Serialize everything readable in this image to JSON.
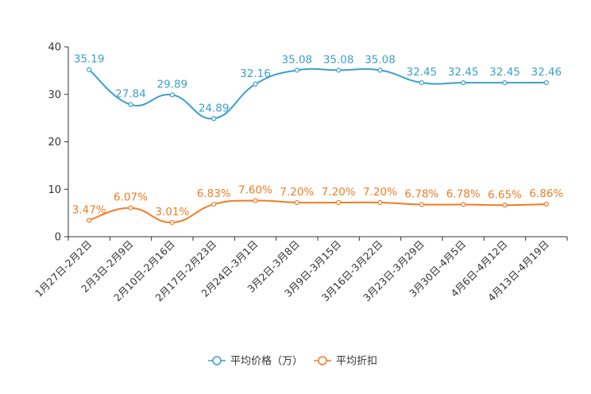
{
  "chart_data": {
    "type": "line",
    "title": "",
    "xlabel": "",
    "ylabel": "",
    "ylim": [
      0,
      40
    ],
    "yticks": [
      "0",
      "10",
      "20",
      "30",
      "40"
    ],
    "categories": [
      "1月27日-2月2日",
      "2月3日-2月9日",
      "2月10日-2月16日",
      "2月17日-2月23日",
      "2月24日-3月1日",
      "3月2日-3月8日",
      "3月9日-3月15日",
      "3月16日-3月22日",
      "3月23日-3月29日",
      "3月30日-4月5日",
      "4月6日-4月12日",
      "4月13日-4月19日"
    ],
    "series": [
      {
        "name": "平均价格（万）",
        "color": "#3c9fcc",
        "values": [
          35.19,
          27.84,
          29.89,
          24.89,
          32.16,
          35.08,
          35.08,
          35.08,
          32.45,
          32.45,
          32.45,
          32.46
        ],
        "labels": [
          "35.19",
          "27.84",
          "29.89",
          "24.89",
          "32.16",
          "35.08",
          "35.08",
          "35.08",
          "32.45",
          "32.45",
          "32.45",
          "32.46"
        ]
      },
      {
        "name": "平均折扣",
        "color": "#f07c24",
        "values": [
          3.47,
          6.07,
          3.01,
          6.83,
          7.6,
          7.2,
          7.2,
          7.2,
          6.78,
          6.78,
          6.65,
          6.86
        ],
        "labels": [
          "3.47%",
          "6.07%",
          "3.01%",
          "6.83%",
          "7.60%",
          "7.20%",
          "7.20%",
          "7.20%",
          "6.78%",
          "6.78%",
          "6.65%",
          "6.86%"
        ]
      }
    ],
    "legend_position": "bottom-center"
  }
}
